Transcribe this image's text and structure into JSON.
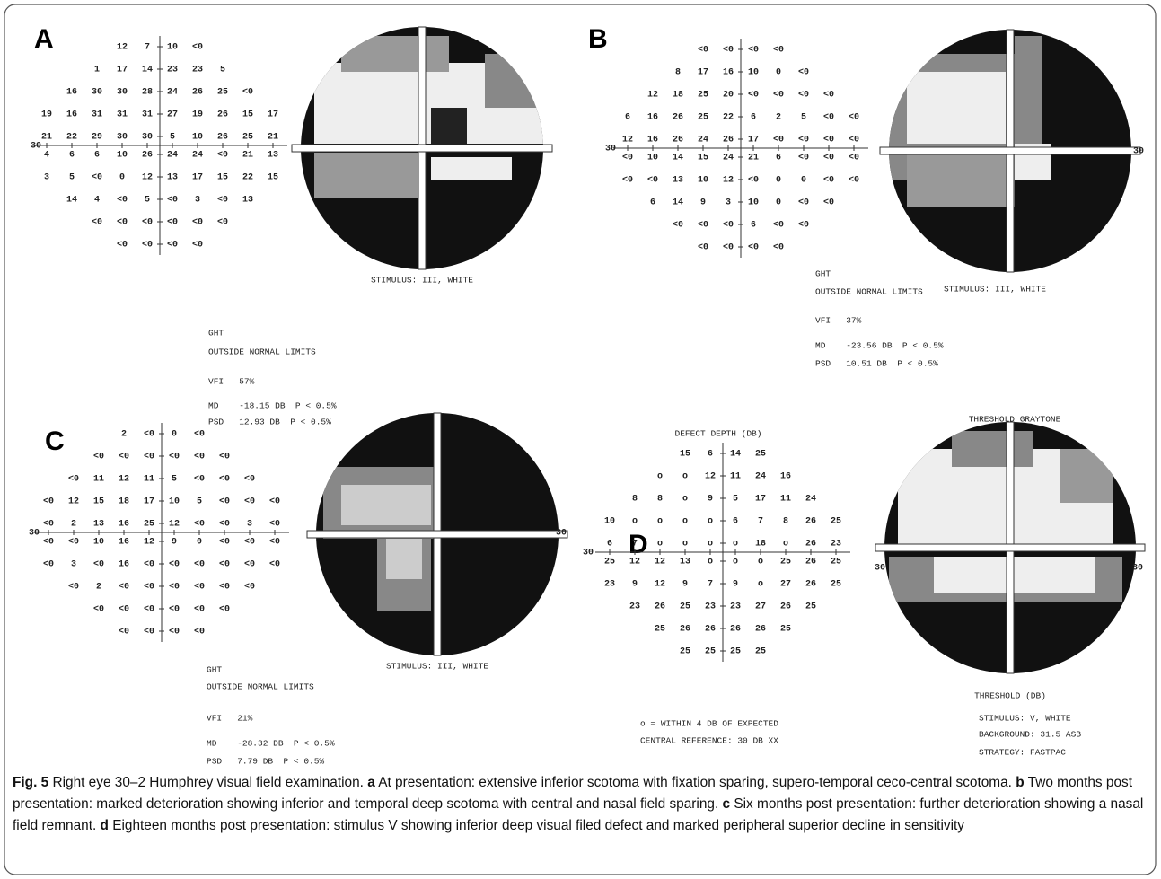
{
  "panels": [
    {
      "letter": "A",
      "axis_labels": [
        "30"
      ],
      "grid": [
        [
          "12",
          "7",
          "10",
          "<0"
        ],
        [
          "1",
          "17",
          "14",
          "23",
          "23",
          "5"
        ],
        [
          "16",
          "30",
          "30",
          "28",
          "24",
          "26",
          "25",
          "<0"
        ],
        [
          "19",
          "16",
          "31",
          "31",
          "31",
          "27",
          "19",
          "26",
          "15",
          "17"
        ],
        [
          "21",
          "22",
          "29",
          "30",
          "30",
          "5",
          "10",
          "26",
          "25",
          "21"
        ],
        [
          "4",
          "6",
          "6",
          "10",
          "26",
          "24",
          "24",
          "<0",
          "21",
          "13"
        ],
        [
          "3",
          "5",
          "<0",
          "0",
          "12",
          "13",
          "17",
          "15",
          "22",
          "15"
        ],
        [
          "14",
          "4",
          "<0",
          "5",
          "<0",
          "3",
          "<0",
          "13"
        ],
        [
          "<0",
          "<0",
          "<0",
          "<0",
          "<0",
          "<0"
        ],
        [
          "<0",
          "<0",
          "<0",
          "<0"
        ]
      ],
      "stimulus": "STIMULUS: III, WHITE",
      "stats": [
        "GHT",
        "OUTSIDE NORMAL LIMITS",
        "VFI   57%",
        "MD    -18.15 DB  P < 0.5%",
        "PSD   12.93 DB  P < 0.5%"
      ]
    },
    {
      "letter": "B",
      "axis_labels": [
        "30",
        "30"
      ],
      "grid": [
        [
          "<0",
          "<0",
          "<0",
          "<0"
        ],
        [
          "8",
          "17",
          "16",
          "10",
          "0",
          "<0"
        ],
        [
          "12",
          "18",
          "25",
          "20",
          "<0",
          "<0",
          "<0",
          "<0"
        ],
        [
          "6",
          "16",
          "26",
          "25",
          "22",
          "6",
          "2",
          "5",
          "<0",
          "<0"
        ],
        [
          "12",
          "16",
          "26",
          "24",
          "26",
          "17",
          "<0",
          "<0",
          "<0",
          "<0"
        ],
        [
          "<0",
          "10",
          "14",
          "15",
          "24",
          "21",
          "6",
          "<0",
          "<0",
          "<0"
        ],
        [
          "<0",
          "<0",
          "13",
          "10",
          "12",
          "<0",
          "0",
          "0",
          "<0",
          "<0"
        ],
        [
          "6",
          "14",
          "9",
          "3",
          "10",
          "0",
          "<0",
          "<0"
        ],
        [
          "<0",
          "<0",
          "<0",
          "6",
          "<0",
          "<0"
        ],
        [
          "<0",
          "<0",
          "<0",
          "<0"
        ]
      ],
      "stimulus": "STIMULUS: III, WHITE",
      "stats": [
        "GHT",
        "OUTSIDE NORMAL LIMITS",
        "VFI   37%",
        "MD    -23.56 DB  P < 0.5%",
        "PSD   10.51 DB  P < 0.5%"
      ]
    },
    {
      "letter": "C",
      "axis_labels": [
        "30",
        "30"
      ],
      "grid": [
        [
          "2",
          "<0",
          "0",
          "<0"
        ],
        [
          "<0",
          "<0",
          "<0",
          "<0",
          "<0",
          "<0"
        ],
        [
          "<0",
          "11",
          "12",
          "11",
          "5",
          "<0",
          "<0",
          "<0"
        ],
        [
          "<0",
          "12",
          "15",
          "18",
          "17",
          "10",
          "5",
          "<0",
          "<0",
          "<0"
        ],
        [
          "<0",
          "2",
          "13",
          "16",
          "25",
          "12",
          "<0",
          "<0",
          "3",
          "<0"
        ],
        [
          "<0",
          "<0",
          "10",
          "16",
          "12",
          "9",
          "0",
          "<0",
          "<0",
          "<0"
        ],
        [
          "<0",
          "3",
          "<0",
          "16",
          "<0",
          "<0",
          "<0",
          "<0",
          "<0",
          "<0"
        ],
        [
          "<0",
          "2",
          "<0",
          "<0",
          "<0",
          "<0",
          "<0",
          "<0"
        ],
        [
          "<0",
          "<0",
          "<0",
          "<0",
          "<0",
          "<0"
        ],
        [
          "<0",
          "<0",
          "<0",
          "<0"
        ]
      ],
      "stimulus": "STIMULUS: III, WHITE",
      "stats": [
        "GHT",
        "OUTSIDE NORMAL LIMITS",
        "VFI   21%",
        "MD    -28.32 DB  P < 0.5%",
        "PSD   7.79 DB  P < 0.5%"
      ]
    },
    {
      "letter": "D",
      "axis_labels": [
        "30",
        "30",
        "30"
      ],
      "title": "DEFECT DEPTH (DB)",
      "grid": [
        [
          "15",
          "6",
          "14",
          "25"
        ],
        [
          "o",
          "o",
          "12",
          "11",
          "24",
          "16"
        ],
        [
          "8",
          "8",
          "o",
          "9",
          "5",
          "17",
          "11",
          "24"
        ],
        [
          "10",
          "o",
          "o",
          "o",
          "o",
          "6",
          "7",
          "8",
          "26",
          "25"
        ],
        [
          "6",
          "7",
          "o",
          "o",
          "o",
          "o",
          "18",
          "o",
          "26",
          "23"
        ],
        [
          "25",
          "12",
          "12",
          "13",
          "o",
          "o",
          "o",
          "25",
          "26",
          "25"
        ],
        [
          "23",
          "9",
          "12",
          "9",
          "7",
          "9",
          "o",
          "27",
          "26",
          "25"
        ],
        [
          "23",
          "26",
          "25",
          "23",
          "23",
          "27",
          "26",
          "25"
        ],
        [
          "25",
          "26",
          "26",
          "26",
          "26",
          "25"
        ],
        [
          "25",
          "25",
          "25",
          "25"
        ]
      ],
      "legend": [
        "o = WITHIN 4 DB OF EXPECTED",
        "CENTRAL REFERENCE: 30 DB XX"
      ],
      "field_title": "THRESHOLD GRAYTONE",
      "field_caption": "THRESHOLD (DB)",
      "stats": [
        "STIMULUS: V, WHITE",
        "BACKGROUND: 31.5 ASB",
        "STRATEGY: FASTPAC"
      ]
    }
  ],
  "caption": [
    {
      "text": "Fig. 5",
      "bold": true
    },
    {
      "text": " Right eye 30–2 Humphrey visual field examination. "
    },
    {
      "text": "a",
      "bold": true
    },
    {
      "text": " At presentation: extensive inferior scotoma with fixation sparing, supero-temporal ceco-central scotoma. "
    },
    {
      "text": "b",
      "bold": true
    },
    {
      "text": " Two months post presentation: marked deterioration showing inferior and temporal deep scotoma with central and nasal field sparing. "
    },
    {
      "text": "c",
      "bold": true
    },
    {
      "text": " Six months post presentation: further deterioration showing a nasal field remnant. "
    },
    {
      "text": "d",
      "bold": true
    },
    {
      "text": " Eighteen months post presentation: stimulus V showing inferior deep visual filed defect and marked peripheral superior decline in sensitivity"
    }
  ]
}
